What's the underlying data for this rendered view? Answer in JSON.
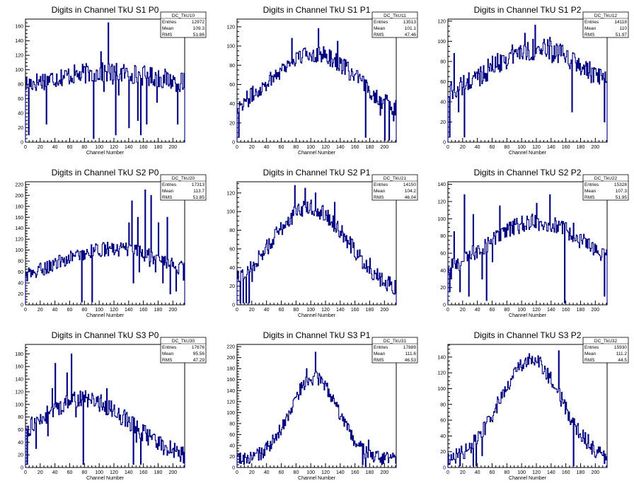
{
  "chart_data": [
    {
      "type": "histogram",
      "title": "Digits in Channel TkU S1 P0",
      "xlabel": "Channel Number",
      "xlim": [
        0,
        216
      ],
      "ylim": [
        0,
        170
      ],
      "xticks": [
        0,
        20,
        40,
        60,
        80,
        100,
        120,
        140,
        160,
        180,
        200
      ],
      "yticks": [
        0,
        20,
        40,
        60,
        80,
        100,
        120,
        140,
        160
      ],
      "stats": {
        "name": "DC_TkU10",
        "rows": [
          {
            "label": "Entries",
            "value": "12972"
          },
          {
            "label": "Mean",
            "value": "109.3"
          },
          {
            "label": "RMS",
            "value": "51.86"
          }
        ]
      },
      "profile": {
        "amp": 68,
        "center": 110,
        "sigma": 150,
        "base": 28,
        "noise": 14
      },
      "spikes": [
        [
          4,
          10
        ],
        [
          28,
          25
        ],
        [
          74,
          85
        ],
        [
          88,
          98
        ],
        [
          92,
          5
        ],
        [
          102,
          125
        ],
        [
          106,
          70
        ],
        [
          112,
          165
        ],
        [
          118,
          80
        ],
        [
          122,
          10
        ],
        [
          126,
          65
        ],
        [
          140,
          20
        ],
        [
          144,
          95
        ],
        [
          152,
          30
        ],
        [
          156,
          10
        ],
        [
          164,
          25
        ],
        [
          178,
          55
        ],
        [
          206,
          25
        ],
        [
          214,
          75
        ]
      ]
    },
    {
      "type": "histogram",
      "title": "Digits in Channel TkU S1 P1",
      "xlabel": "Channel Number",
      "xlim": [
        0,
        216
      ],
      "ylim": [
        0,
        128
      ],
      "xticks": [
        0,
        20,
        40,
        60,
        80,
        100,
        120,
        140,
        160,
        180,
        200
      ],
      "yticks": [
        0,
        20,
        40,
        60,
        80,
        100,
        120
      ],
      "stats": {
        "name": "DC_TkU11",
        "rows": [
          {
            "label": "Entries",
            "value": "13513"
          },
          {
            "label": "Mean",
            "value": "101.1"
          },
          {
            "label": "RMS",
            "value": "47.46"
          }
        ]
      },
      "profile": {
        "amp": 72,
        "center": 104,
        "sigma": 62,
        "base": 20,
        "noise": 9
      },
      "spikes": [
        [
          2,
          5
        ],
        [
          74,
          108
        ],
        [
          110,
          118
        ],
        [
          136,
          105
        ],
        [
          174,
          5
        ],
        [
          194,
          28
        ],
        [
          200,
          2
        ],
        [
          206,
          2
        ],
        [
          212,
          22
        ]
      ]
    },
    {
      "type": "histogram",
      "title": "Digits in Channel TkU S1 P2",
      "xlabel": "Channel Number",
      "xlim": [
        0,
        216
      ],
      "ylim": [
        0,
        122
      ],
      "xticks": [
        0,
        20,
        40,
        60,
        80,
        100,
        120,
        140,
        160,
        180,
        200
      ],
      "yticks": [
        0,
        20,
        40,
        60,
        80,
        100,
        120
      ],
      "stats": {
        "name": "DC_TkU12",
        "rows": [
          {
            "label": "Entries",
            "value": "14118"
          },
          {
            "label": "Mean",
            "value": "110"
          },
          {
            "label": "RMS",
            "value": "51.97"
          }
        ]
      },
      "profile": {
        "amp": 62,
        "center": 120,
        "sigma": 75,
        "base": 30,
        "noise": 11
      },
      "spikes": [
        [
          2,
          5
        ],
        [
          4,
          60
        ],
        [
          8,
          88
        ],
        [
          14,
          30
        ],
        [
          18,
          60
        ],
        [
          22,
          5
        ],
        [
          104,
          108
        ],
        [
          118,
          116
        ],
        [
          138,
          104
        ],
        [
          168,
          30
        ],
        [
          212,
          20
        ]
      ]
    },
    {
      "type": "histogram",
      "title": "Digits in Channel TkU S2 P0",
      "xlabel": "Channel Number",
      "xlim": [
        0,
        216
      ],
      "ylim": [
        0,
        225
      ],
      "xticks": [
        0,
        20,
        40,
        60,
        80,
        100,
        120,
        140,
        160,
        180,
        200
      ],
      "yticks": [
        0,
        20,
        40,
        60,
        80,
        100,
        120,
        140,
        160,
        180,
        200,
        220
      ],
      "stats": {
        "name": "DC_TkU20",
        "rows": [
          {
            "label": "Entries",
            "value": "17313"
          },
          {
            "label": "Mean",
            "value": "113.7"
          },
          {
            "label": "RMS",
            "value": "51.85"
          }
        ]
      },
      "profile": {
        "amp": 78,
        "center": 118,
        "sigma": 85,
        "base": 24,
        "noise": 13
      },
      "spikes": [
        [
          14,
          50
        ],
        [
          62,
          95
        ],
        [
          76,
          5
        ],
        [
          90,
          5
        ],
        [
          140,
          150
        ],
        [
          144,
          190
        ],
        [
          146,
          40
        ],
        [
          152,
          160
        ],
        [
          154,
          60
        ],
        [
          162,
          210
        ],
        [
          168,
          70
        ],
        [
          170,
          200
        ],
        [
          176,
          60
        ],
        [
          180,
          150
        ],
        [
          186,
          40
        ],
        [
          192,
          160
        ],
        [
          196,
          20
        ],
        [
          204,
          25
        ],
        [
          214,
          45
        ]
      ]
    },
    {
      "type": "histogram",
      "title": "Digits in Channel TkU S2 P1",
      "xlabel": "Channel Number",
      "xlim": [
        0,
        216
      ],
      "ylim": [
        0,
        132
      ],
      "xticks": [
        0,
        20,
        40,
        60,
        80,
        100,
        120,
        140,
        160,
        180,
        200
      ],
      "yticks": [
        0,
        20,
        40,
        60,
        80,
        100,
        120
      ],
      "stats": {
        "name": "DC_TkU21",
        "rows": [
          {
            "label": "Entries",
            "value": "14150"
          },
          {
            "label": "Mean",
            "value": "104.2"
          },
          {
            "label": "RMS",
            "value": "46.04"
          }
        ]
      },
      "profile": {
        "amp": 92,
        "center": 98,
        "sigma": 52,
        "base": 12,
        "noise": 9
      },
      "spikes": [
        [
          2,
          25
        ],
        [
          4,
          2
        ],
        [
          8,
          2
        ],
        [
          12,
          2
        ],
        [
          16,
          2
        ],
        [
          20,
          25
        ],
        [
          78,
          128
        ],
        [
          92,
          125
        ],
        [
          106,
          120
        ],
        [
          132,
          110
        ],
        [
          180,
          50
        ],
        [
          212,
          12
        ]
      ]
    },
    {
      "type": "histogram",
      "title": "Digits in Channel TkU S2 P2",
      "xlabel": "Channel Number",
      "xlim": [
        0,
        216
      ],
      "ylim": [
        0,
        143
      ],
      "xticks": [
        0,
        20,
        40,
        60,
        80,
        100,
        120,
        140,
        160,
        180,
        200
      ],
      "yticks": [
        0,
        20,
        40,
        60,
        80,
        100,
        120,
        140
      ],
      "stats": {
        "name": "DC_TkU22",
        "rows": [
          {
            "label": "Entries",
            "value": "15328"
          },
          {
            "label": "Mean",
            "value": "107.3"
          },
          {
            "label": "RMS",
            "value": "51.95"
          }
        ]
      },
      "profile": {
        "amp": 72,
        "center": 120,
        "sigma": 72,
        "base": 24,
        "noise": 10
      },
      "spikes": [
        [
          2,
          15
        ],
        [
          4,
          30
        ],
        [
          8,
          85
        ],
        [
          16,
          15
        ],
        [
          22,
          128
        ],
        [
          28,
          10
        ],
        [
          34,
          105
        ],
        [
          46,
          30
        ],
        [
          52,
          5
        ],
        [
          60,
          50
        ],
        [
          70,
          115
        ],
        [
          120,
          118
        ],
        [
          138,
          128
        ],
        [
          158,
          2
        ],
        [
          170,
          95
        ],
        [
          212,
          10
        ]
      ]
    },
    {
      "type": "histogram",
      "title": "Digits in Channel TkU S3 P0",
      "xlabel": "Channel Number",
      "xlim": [
        0,
        216
      ],
      "ylim": [
        0,
        195
      ],
      "xticks": [
        0,
        20,
        40,
        60,
        80,
        100,
        120,
        140,
        160,
        180,
        200
      ],
      "yticks": [
        0,
        20,
        40,
        60,
        80,
        100,
        120,
        140,
        160,
        180
      ],
      "stats": {
        "name": "DC_TkU30",
        "rows": [
          {
            "label": "Entries",
            "value": "17676"
          },
          {
            "label": "Mean",
            "value": "95.56"
          },
          {
            "label": "RMS",
            "value": "47.29"
          }
        ]
      },
      "profile": {
        "amp": 98,
        "center": 78,
        "sigma": 65,
        "base": 10,
        "noise": 14
      },
      "spikes": [
        [
          2,
          5
        ],
        [
          8,
          80
        ],
        [
          14,
          30
        ],
        [
          24,
          80
        ],
        [
          30,
          50
        ],
        [
          36,
          125
        ],
        [
          40,
          165
        ],
        [
          50,
          90
        ],
        [
          56,
          150
        ],
        [
          62,
          180
        ],
        [
          68,
          80
        ],
        [
          78,
          5
        ],
        [
          110,
          125
        ],
        [
          146,
          5
        ],
        [
          150,
          40
        ],
        [
          156,
          5
        ],
        [
          168,
          60
        ]
      ]
    },
    {
      "type": "histogram",
      "title": "Digits in Channel TkU S3 P1",
      "xlabel": "Channel Number",
      "xlim": [
        0,
        216
      ],
      "ylim": [
        0,
        224
      ],
      "xticks": [
        0,
        20,
        40,
        60,
        80,
        100,
        120,
        140,
        160,
        180,
        200
      ],
      "yticks": [
        0,
        20,
        40,
        60,
        80,
        100,
        120,
        140,
        160,
        180,
        200,
        220
      ],
      "stats": {
        "name": "DC_TkU31",
        "rows": [
          {
            "label": "Entries",
            "value": "17889"
          },
          {
            "label": "Mean",
            "value": "111.6"
          },
          {
            "label": "RMS",
            "value": "46.53"
          }
        ]
      },
      "profile": {
        "amp": 150,
        "center": 104,
        "sigma": 32,
        "base": 14,
        "noise": 13
      },
      "spikes": [
        [
          94,
          180
        ],
        [
          98,
          160
        ],
        [
          102,
          150
        ],
        [
          106,
          210
        ],
        [
          110,
          150
        ],
        [
          170,
          5
        ],
        [
          174,
          2
        ],
        [
          178,
          50
        ]
      ]
    },
    {
      "type": "histogram",
      "title": "Digits in Channel TkU S3 P2",
      "xlabel": "Channel Number",
      "xlim": [
        0,
        216
      ],
      "ylim": [
        0,
        156
      ],
      "xticks": [
        0,
        20,
        40,
        60,
        80,
        100,
        120,
        140,
        160,
        180,
        200
      ],
      "yticks": [
        0,
        20,
        40,
        60,
        80,
        100,
        120,
        140
      ],
      "stats": {
        "name": "DC_TkU32",
        "rows": [
          {
            "label": "Entries",
            "value": "15930"
          },
          {
            "label": "Mean",
            "value": "111.2"
          },
          {
            "label": "RMS",
            "value": "44.5"
          }
        ]
      },
      "profile": {
        "amp": 128,
        "center": 112,
        "sigma": 42,
        "base": 8,
        "noise": 10
      },
      "spikes": [
        [
          6,
          10
        ],
        [
          16,
          2
        ],
        [
          24,
          30
        ],
        [
          34,
          2
        ],
        [
          38,
          2
        ],
        [
          42,
          45
        ],
        [
          46,
          15
        ],
        [
          150,
          148
        ],
        [
          170,
          2
        ],
        [
          190,
          42
        ],
        [
          212,
          5
        ]
      ]
    }
  ]
}
